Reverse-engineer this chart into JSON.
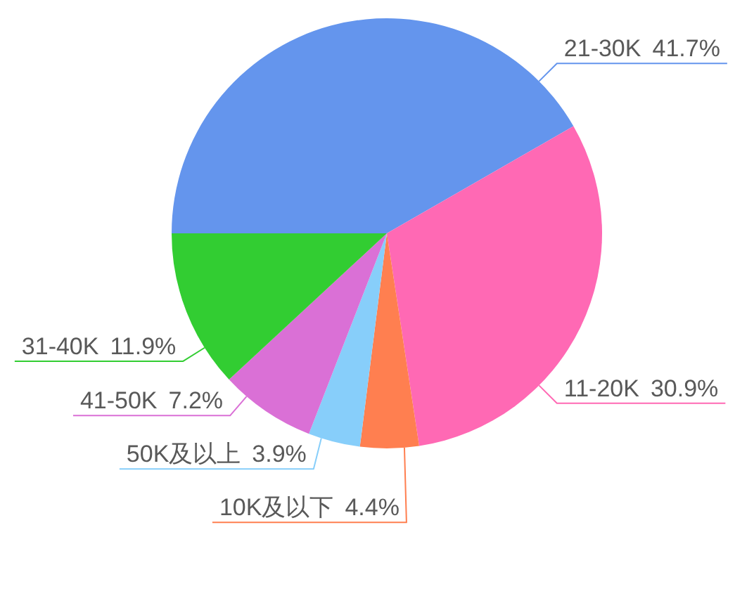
{
  "chart_data": {
    "type": "pie",
    "categories": [
      "21-30K",
      "11-20K",
      "10K及以下",
      "50K及以上",
      "41-50K",
      "31-40K"
    ],
    "values": [
      41.7,
      30.9,
      4.4,
      3.9,
      7.2,
      11.9
    ],
    "value_labels": [
      "41.7%",
      "30.9%",
      "4.4%",
      "3.9%",
      "7.2%",
      "11.9%"
    ],
    "colors": [
      "#6495ed",
      "#ff69b4",
      "#ff7f50",
      "#87cefa",
      "#da70d6",
      "#32cd32"
    ]
  }
}
